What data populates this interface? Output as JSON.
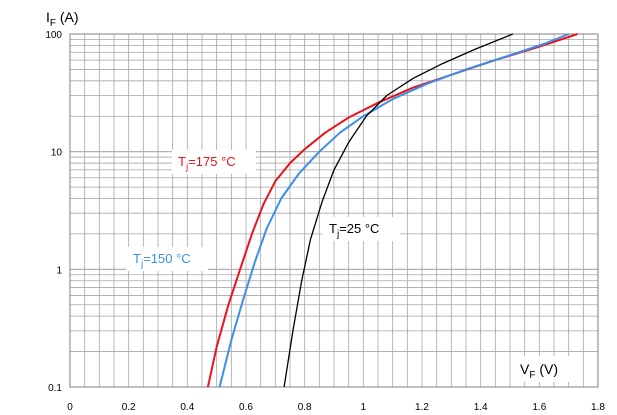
{
  "chart_data": {
    "type": "line",
    "xlabel_main": "V",
    "xlabel_sub": "F",
    "xlabel_unit": " (V)",
    "ylabel_main": "I",
    "ylabel_sub": "F",
    "ylabel_unit": " (A)",
    "xlim": [
      0,
      1.8
    ],
    "ylim": [
      0.1,
      100
    ],
    "y_scale": "log",
    "x_ticks": [
      "0",
      "0.2",
      "0.4",
      "0.6",
      "0.8",
      "1",
      "1.2",
      "1.4",
      "1.6",
      "1.8"
    ],
    "y_ticks": [
      "0.1",
      "1",
      "10",
      "100"
    ],
    "grid": true,
    "series": [
      {
        "label_main": "T",
        "label_sub": "j",
        "label_rest": "=175 °C",
        "color": "#e8141b",
        "points": [
          [
            0.47,
            0.1
          ],
          [
            0.5,
            0.22
          ],
          [
            0.54,
            0.5
          ],
          [
            0.58,
            1.0
          ],
          [
            0.62,
            2.0
          ],
          [
            0.66,
            3.6
          ],
          [
            0.7,
            5.6
          ],
          [
            0.75,
            8.0
          ],
          [
            0.8,
            10.5
          ],
          [
            0.87,
            14.5
          ],
          [
            0.95,
            19.5
          ],
          [
            1.05,
            26
          ],
          [
            1.17,
            35
          ],
          [
            1.3,
            45
          ],
          [
            1.45,
            60
          ],
          [
            1.6,
            78
          ],
          [
            1.73,
            100
          ]
        ]
      },
      {
        "label_main": "T",
        "label_sub": "j",
        "label_rest": "=150 °C",
        "color": "#3b8fe8",
        "points": [
          [
            0.51,
            0.1
          ],
          [
            0.55,
            0.25
          ],
          [
            0.59,
            0.55
          ],
          [
            0.63,
            1.15
          ],
          [
            0.67,
            2.2
          ],
          [
            0.72,
            4.0
          ],
          [
            0.78,
            6.5
          ],
          [
            0.85,
            10
          ],
          [
            0.92,
            14.5
          ],
          [
            1.0,
            20
          ],
          [
            1.1,
            28
          ],
          [
            1.22,
            38
          ],
          [
            1.35,
            50
          ],
          [
            1.5,
            66
          ],
          [
            1.62,
            83
          ],
          [
            1.7,
            100
          ]
        ]
      },
      {
        "label_main": "T",
        "label_sub": "j",
        "label_rest": "=25 °C",
        "color": "#000000",
        "points": [
          [
            0.73,
            0.1
          ],
          [
            0.76,
            0.3
          ],
          [
            0.79,
            0.8
          ],
          [
            0.82,
            1.8
          ],
          [
            0.86,
            3.8
          ],
          [
            0.9,
            7.0
          ],
          [
            0.95,
            12
          ],
          [
            1.01,
            20
          ],
          [
            1.08,
            30
          ],
          [
            1.17,
            42
          ],
          [
            1.27,
            56
          ],
          [
            1.38,
            74
          ],
          [
            1.51,
            100
          ]
        ]
      }
    ]
  }
}
